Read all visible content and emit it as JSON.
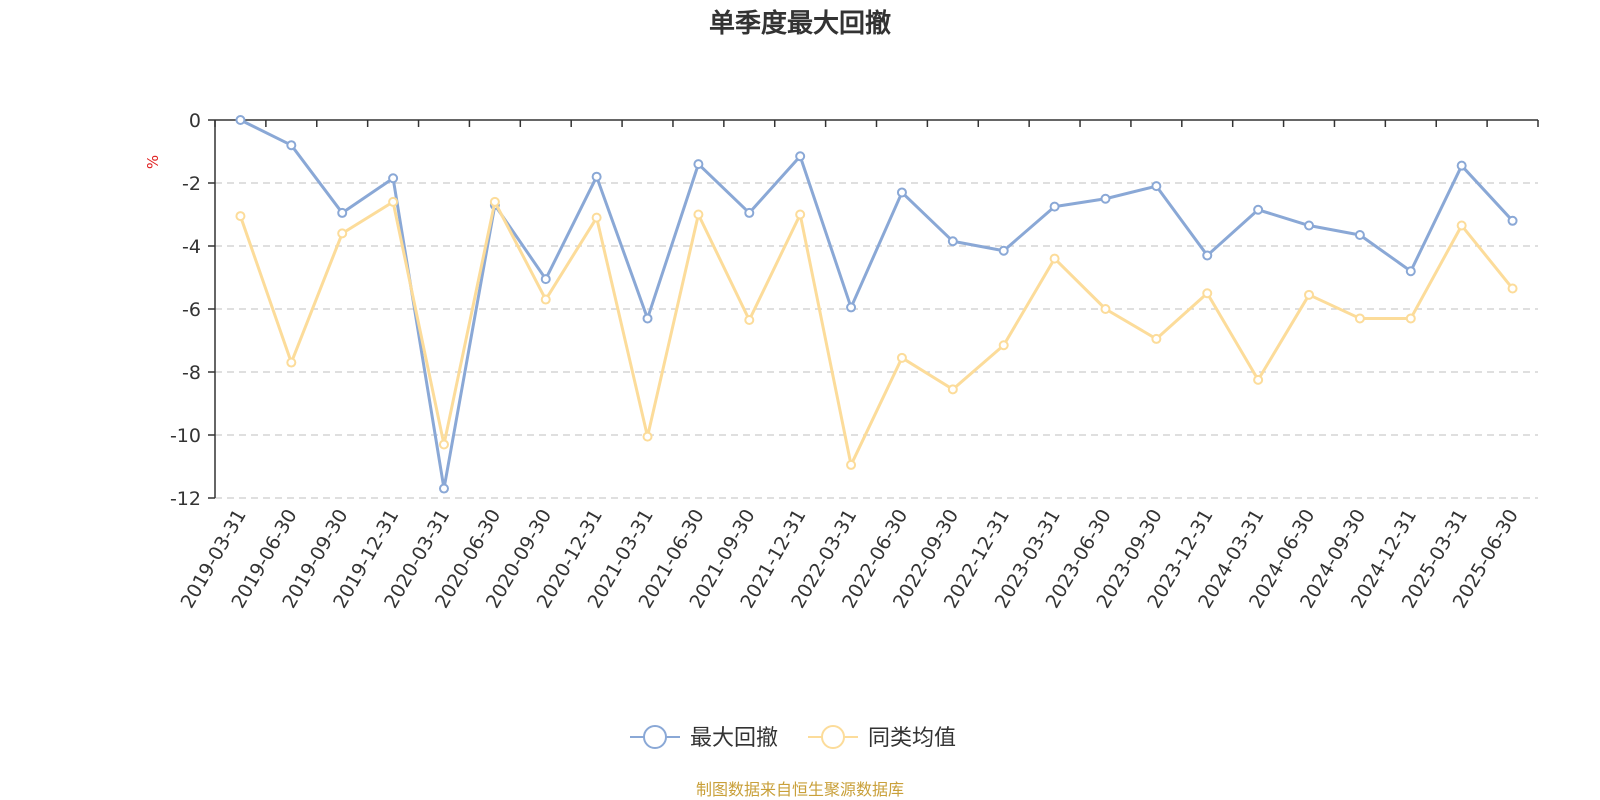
{
  "chart_data": {
    "type": "line",
    "title": "单季度最大回撤",
    "ylabel": "%",
    "ylim": [
      -12,
      0
    ],
    "yticks": [
      0,
      -2,
      -4,
      -6,
      -8,
      -10,
      -12
    ],
    "grid": true,
    "legend_position": "bottom",
    "categories": [
      "2019-03-31",
      "2019-06-30",
      "2019-09-30",
      "2019-12-31",
      "2020-03-31",
      "2020-06-30",
      "2020-09-30",
      "2020-12-31",
      "2021-03-31",
      "2021-06-30",
      "2021-09-30",
      "2021-12-31",
      "2022-03-31",
      "2022-06-30",
      "2022-09-30",
      "2022-12-31",
      "2023-03-31",
      "2023-06-30",
      "2023-09-30",
      "2023-12-31",
      "2024-03-31",
      "2024-06-30",
      "2024-09-30",
      "2024-12-31",
      "2025-03-31",
      "2025-06-30"
    ],
    "series": [
      {
        "name": "最大回撤",
        "color": "#8aa8d6",
        "values": [
          0,
          -0.8,
          -2.95,
          -1.85,
          -11.7,
          -2.7,
          -5.05,
          -1.8,
          -6.3,
          -1.4,
          -2.95,
          -1.15,
          -5.95,
          -2.3,
          -3.85,
          -4.15,
          -2.75,
          -2.5,
          -2.1,
          -4.3,
          -2.85,
          -3.35,
          -3.65,
          -4.8,
          -1.45,
          -3.2
        ]
      },
      {
        "name": "同类均值",
        "color": "#fcdc9a",
        "values": [
          -3.05,
          -7.7,
          -3.6,
          -2.6,
          -10.3,
          -2.6,
          -5.7,
          -3.1,
          -10.05,
          -3.0,
          -6.35,
          -3.0,
          -10.95,
          -7.55,
          -8.55,
          -7.15,
          -4.4,
          -6.0,
          -6.95,
          -5.5,
          -8.25,
          -5.55,
          -6.3,
          -6.3,
          -3.35,
          -5.35
        ]
      }
    ]
  },
  "source_note": "制图数据来自恒生聚源数据库"
}
